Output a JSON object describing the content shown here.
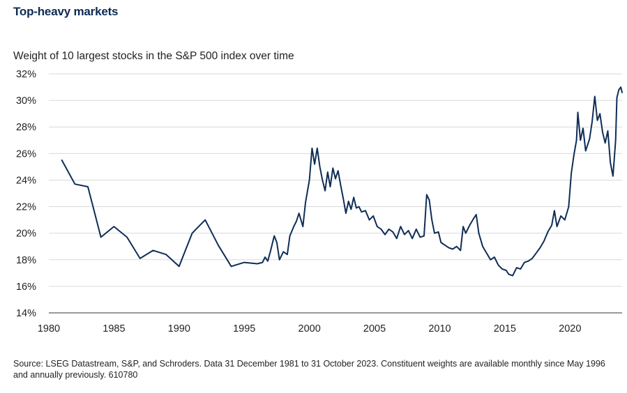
{
  "title": "Top-heavy markets",
  "subtitle": "Weight of 10 largest stocks in the S&P 500 index over time",
  "source": "Source: LSEG Datastream, S&P, and Schroders. Data 31 December 1981 to 31 October 2023. Constituent weights are available monthly since May 1996 and annually previously. 610780",
  "colors": {
    "series": "#0f2d56",
    "title": "#0b2a55",
    "grid": "#d9d9d9"
  },
  "chart_data": {
    "type": "line",
    "title": "Weight of 10 largest stocks in the S&P 500 index over time",
    "xlabel": "",
    "ylabel": "",
    "xlim": [
      1980,
      2024
    ],
    "ylim": [
      14,
      32
    ],
    "grid": true,
    "x_ticks": [
      1980,
      1985,
      1990,
      1995,
      2000,
      2005,
      2010,
      2015,
      2020
    ],
    "x_tick_labels": [
      "1980",
      "1985",
      "1990",
      "1995",
      "2000",
      "2005",
      "2010",
      "2015",
      "2020"
    ],
    "y_ticks": [
      14,
      16,
      18,
      20,
      22,
      24,
      26,
      28,
      30,
      32
    ],
    "y_tick_labels": [
      "14%",
      "16%",
      "18%",
      "20%",
      "22%",
      "24%",
      "26%",
      "28%",
      "30%",
      "32%"
    ],
    "series": [
      {
        "name": "Weight of 10 largest stocks",
        "points": [
          [
            1981.0,
            25.5
          ],
          [
            1982.0,
            23.7
          ],
          [
            1983.0,
            23.5
          ],
          [
            1984.0,
            19.7
          ],
          [
            1985.0,
            20.5
          ],
          [
            1986.0,
            19.7
          ],
          [
            1987.0,
            18.1
          ],
          [
            1988.0,
            18.7
          ],
          [
            1989.0,
            18.4
          ],
          [
            1990.0,
            17.5
          ],
          [
            1991.0,
            20.0
          ],
          [
            1992.0,
            21.0
          ],
          [
            1993.0,
            19.1
          ],
          [
            1994.0,
            17.5
          ],
          [
            1995.0,
            17.8
          ],
          [
            1996.0,
            17.7
          ],
          [
            1996.4,
            17.8
          ],
          [
            1996.6,
            18.2
          ],
          [
            1996.8,
            17.9
          ],
          [
            1997.0,
            18.6
          ],
          [
            1997.3,
            19.8
          ],
          [
            1997.5,
            19.3
          ],
          [
            1997.7,
            18.0
          ],
          [
            1998.0,
            18.6
          ],
          [
            1998.3,
            18.4
          ],
          [
            1998.5,
            19.8
          ],
          [
            1998.8,
            20.5
          ],
          [
            1999.0,
            20.9
          ],
          [
            1999.2,
            21.5
          ],
          [
            1999.5,
            20.5
          ],
          [
            1999.7,
            22.3
          ],
          [
            2000.0,
            24.0
          ],
          [
            2000.2,
            26.4
          ],
          [
            2000.4,
            25.2
          ],
          [
            2000.6,
            26.4
          ],
          [
            2000.8,
            25.0
          ],
          [
            2001.0,
            24.0
          ],
          [
            2001.2,
            23.2
          ],
          [
            2001.4,
            24.6
          ],
          [
            2001.6,
            23.5
          ],
          [
            2001.8,
            24.9
          ],
          [
            2002.0,
            24.1
          ],
          [
            2002.2,
            24.7
          ],
          [
            2002.4,
            23.6
          ],
          [
            2002.6,
            22.6
          ],
          [
            2002.8,
            21.5
          ],
          [
            2003.0,
            22.4
          ],
          [
            2003.2,
            21.8
          ],
          [
            2003.4,
            22.7
          ],
          [
            2003.6,
            21.9
          ],
          [
            2003.8,
            22.0
          ],
          [
            2004.0,
            21.6
          ],
          [
            2004.3,
            21.7
          ],
          [
            2004.6,
            21.0
          ],
          [
            2004.9,
            21.3
          ],
          [
            2005.2,
            20.5
          ],
          [
            2005.5,
            20.3
          ],
          [
            2005.8,
            19.9
          ],
          [
            2006.1,
            20.3
          ],
          [
            2006.4,
            20.1
          ],
          [
            2006.7,
            19.6
          ],
          [
            2007.0,
            20.5
          ],
          [
            2007.3,
            19.9
          ],
          [
            2007.6,
            20.2
          ],
          [
            2007.9,
            19.6
          ],
          [
            2008.2,
            20.3
          ],
          [
            2008.5,
            19.7
          ],
          [
            2008.8,
            19.8
          ],
          [
            2009.0,
            22.9
          ],
          [
            2009.2,
            22.5
          ],
          [
            2009.4,
            21.0
          ],
          [
            2009.6,
            20.0
          ],
          [
            2009.9,
            20.1
          ],
          [
            2010.1,
            19.3
          ],
          [
            2010.4,
            19.1
          ],
          [
            2010.7,
            18.9
          ],
          [
            2011.0,
            18.8
          ],
          [
            2011.3,
            19.0
          ],
          [
            2011.6,
            18.7
          ],
          [
            2011.8,
            20.5
          ],
          [
            2012.0,
            20.0
          ],
          [
            2012.3,
            20.6
          ],
          [
            2012.6,
            21.1
          ],
          [
            2012.8,
            21.4
          ],
          [
            2013.0,
            20.0
          ],
          [
            2013.3,
            19.0
          ],
          [
            2013.6,
            18.5
          ],
          [
            2013.9,
            18.0
          ],
          [
            2014.2,
            18.2
          ],
          [
            2014.5,
            17.6
          ],
          [
            2014.8,
            17.3
          ],
          [
            2015.1,
            17.2
          ],
          [
            2015.3,
            16.9
          ],
          [
            2015.6,
            16.8
          ],
          [
            2015.9,
            17.4
          ],
          [
            2016.2,
            17.3
          ],
          [
            2016.5,
            17.8
          ],
          [
            2016.8,
            17.9
          ],
          [
            2017.1,
            18.1
          ],
          [
            2017.4,
            18.5
          ],
          [
            2017.7,
            18.9
          ],
          [
            2018.0,
            19.4
          ],
          [
            2018.3,
            20.1
          ],
          [
            2018.6,
            20.6
          ],
          [
            2018.8,
            21.7
          ],
          [
            2019.0,
            20.5
          ],
          [
            2019.3,
            21.3
          ],
          [
            2019.6,
            21.0
          ],
          [
            2019.9,
            22.0
          ],
          [
            2020.1,
            24.5
          ],
          [
            2020.3,
            25.9
          ],
          [
            2020.5,
            27.0
          ],
          [
            2020.6,
            29.1
          ],
          [
            2020.8,
            27.0
          ],
          [
            2021.0,
            27.9
          ],
          [
            2021.2,
            26.2
          ],
          [
            2021.5,
            27.1
          ],
          [
            2021.7,
            28.4
          ],
          [
            2021.9,
            30.3
          ],
          [
            2022.1,
            28.5
          ],
          [
            2022.3,
            29.0
          ],
          [
            2022.5,
            27.6
          ],
          [
            2022.7,
            26.8
          ],
          [
            2022.9,
            27.7
          ],
          [
            2023.1,
            25.3
          ],
          [
            2023.3,
            24.3
          ],
          [
            2023.5,
            27.0
          ],
          [
            2023.6,
            30.2
          ],
          [
            2023.75,
            30.8
          ],
          [
            2023.9,
            31.0
          ],
          [
            2024.0,
            30.6
          ]
        ]
      }
    ]
  }
}
